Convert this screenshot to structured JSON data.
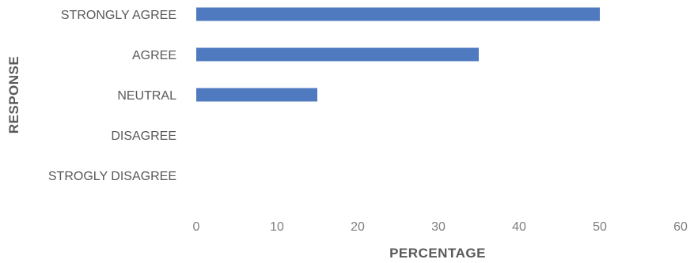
{
  "chart_data": {
    "type": "bar",
    "orientation": "horizontal",
    "categories": [
      "STRONGLY AGREE",
      "AGREE",
      "NEUTRAL",
      "DISAGREE",
      "STROGLY DISAGREE"
    ],
    "values": [
      50,
      35,
      15,
      0,
      0
    ],
    "title": "",
    "xlabel": "PERCENTAGE",
    "ylabel": "RESPONSE",
    "xlim": [
      0,
      60
    ],
    "xticks": [
      "0",
      "10",
      "20",
      "30",
      "40",
      "50",
      "60"
    ],
    "grid": false,
    "bar_color": "#4f7ac0"
  }
}
